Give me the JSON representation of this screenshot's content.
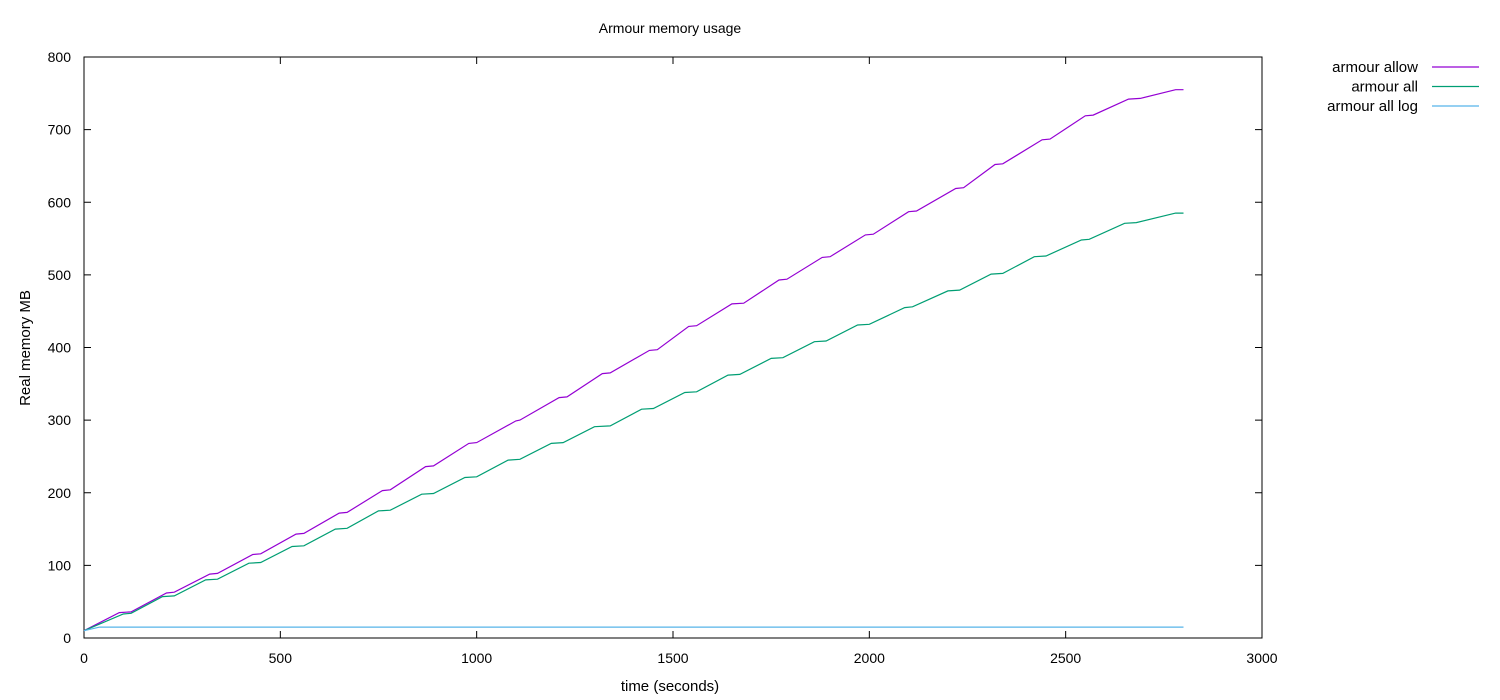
{
  "chart_data": {
    "type": "line",
    "title": "Armour memory usage",
    "xlabel": "time (seconds)",
    "ylabel": "Real memory MB",
    "xlim": [
      0,
      3000
    ],
    "ylim": [
      0,
      800
    ],
    "xticks": [
      0,
      500,
      1000,
      1500,
      2000,
      2500,
      3000
    ],
    "yticks": [
      0,
      100,
      200,
      300,
      400,
      500,
      600,
      700,
      800
    ],
    "grid": false,
    "legend_position": "outside-top-right",
    "series": [
      {
        "name": "armour allow",
        "color": "#9400d3",
        "x": [
          0,
          90,
          120,
          210,
          230,
          320,
          340,
          430,
          450,
          540,
          560,
          650,
          670,
          760,
          780,
          870,
          890,
          980,
          1000,
          1100,
          1110,
          1210,
          1230,
          1320,
          1340,
          1440,
          1460,
          1540,
          1560,
          1650,
          1680,
          1770,
          1790,
          1880,
          1900,
          1990,
          2010,
          2100,
          2120,
          2220,
          2240,
          2320,
          2340,
          2440,
          2460,
          2550,
          2570,
          2660,
          2690,
          2780,
          2800
        ],
        "y": [
          10,
          35,
          36,
          62,
          63,
          88,
          89,
          115,
          116,
          143,
          144,
          172,
          173,
          203,
          204,
          236,
          237,
          268,
          269,
          299,
          300,
          331,
          332,
          364,
          365,
          396,
          397,
          429,
          430,
          460,
          461,
          493,
          494,
          524,
          525,
          555,
          556,
          587,
          588,
          619,
          620,
          652,
          653,
          686,
          687,
          719,
          720,
          742,
          743,
          755,
          755
        ]
      },
      {
        "name": "armour all",
        "color": "#009e73",
        "x": [
          0,
          100,
          120,
          200,
          230,
          310,
          340,
          420,
          450,
          530,
          560,
          640,
          670,
          750,
          780,
          860,
          890,
          970,
          1000,
          1080,
          1110,
          1190,
          1220,
          1300,
          1340,
          1420,
          1450,
          1530,
          1560,
          1640,
          1670,
          1750,
          1780,
          1860,
          1890,
          1970,
          2000,
          2090,
          2110,
          2200,
          2230,
          2310,
          2340,
          2420,
          2450,
          2540,
          2560,
          2650,
          2680,
          2780,
          2800
        ],
        "y": [
          10,
          33,
          34,
          57,
          58,
          80,
          81,
          103,
          104,
          126,
          127,
          150,
          151,
          175,
          176,
          198,
          199,
          221,
          222,
          245,
          246,
          268,
          269,
          291,
          292,
          315,
          316,
          338,
          339,
          362,
          363,
          385,
          386,
          408,
          409,
          431,
          432,
          455,
          456,
          478,
          479,
          501,
          502,
          525,
          526,
          548,
          549,
          571,
          572,
          585,
          585
        ]
      },
      {
        "name": "armour all log",
        "color": "#56b4e9",
        "x": [
          0,
          40,
          2800
        ],
        "y": [
          10,
          15,
          15
        ]
      }
    ]
  }
}
